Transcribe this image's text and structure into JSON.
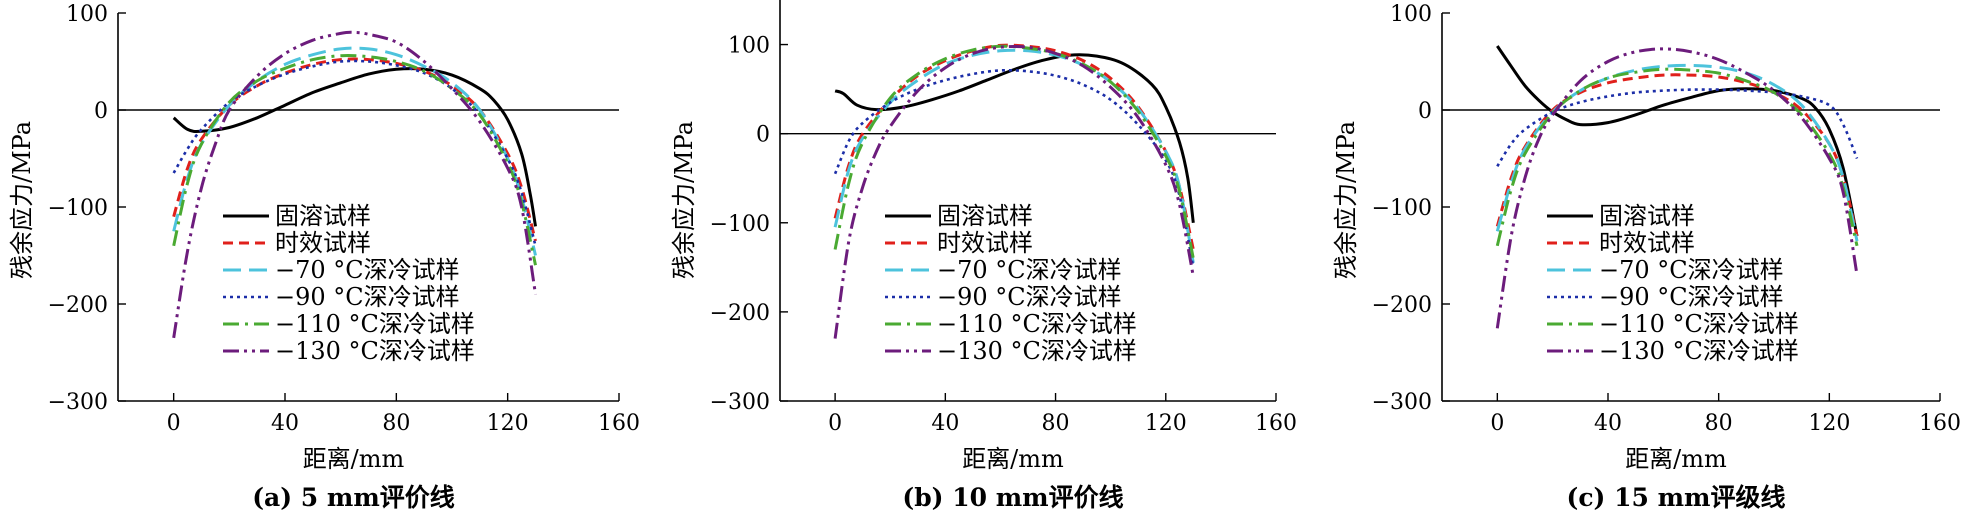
{
  "figure": {
    "ylabel": "残余应力/MPa",
    "xlabel": "距离/mm"
  },
  "chart_data": [
    {
      "type": "line",
      "caption": "(a) 5 mm评价线",
      "xlabel": "距离/mm",
      "ylabel": "残余应力/MPa",
      "xlim": [
        -20,
        160
      ],
      "ylim": [
        -300,
        100
      ],
      "xticks": [
        0,
        40,
        80,
        120,
        160
      ],
      "yticks": [
        100,
        0,
        -100,
        -200,
        -300
      ],
      "legend_position": "lower-center",
      "series": [
        {
          "name": "固溶试样",
          "color": "#000000",
          "dash": "solid",
          "x": [
            0,
            5,
            10,
            20,
            30,
            40,
            50,
            60,
            70,
            80,
            90,
            100,
            110,
            115,
            120,
            125,
            128,
            130
          ],
          "y": [
            -8,
            -20,
            -22,
            -18,
            -8,
            5,
            18,
            28,
            37,
            42,
            42,
            36,
            22,
            10,
            -10,
            -45,
            -85,
            -120
          ]
        },
        {
          "name": "时效试样",
          "color": "#e0201b",
          "dash": "dashed",
          "x": [
            0,
            5,
            10,
            20,
            30,
            40,
            50,
            60,
            70,
            80,
            90,
            100,
            110,
            120,
            125,
            130
          ],
          "y": [
            -110,
            -60,
            -30,
            5,
            25,
            38,
            47,
            52,
            52,
            48,
            40,
            25,
            0,
            -45,
            -80,
            -135
          ]
        },
        {
          "name": "−70 °C深冷试样",
          "color": "#4dc3dc",
          "dash": "longdash",
          "x": [
            0,
            5,
            10,
            20,
            30,
            40,
            50,
            60,
            70,
            80,
            90,
            100,
            110,
            120,
            125,
            130
          ],
          "y": [
            -125,
            -70,
            -35,
            5,
            30,
            47,
            57,
            63,
            63,
            57,
            45,
            28,
            0,
            -50,
            -90,
            -150
          ]
        },
        {
          "name": "−90 °C深冷试样",
          "color": "#1c2ea8",
          "dash": "dotted",
          "x": [
            0,
            5,
            10,
            20,
            30,
            40,
            50,
            60,
            70,
            80,
            90,
            100,
            110,
            120,
            125,
            130
          ],
          "y": [
            -65,
            -40,
            -20,
            8,
            25,
            37,
            45,
            50,
            50,
            46,
            38,
            22,
            -5,
            -50,
            -85,
            -140
          ]
        },
        {
          "name": "−110 °C深冷试样",
          "color": "#4aaa32",
          "dash": "dashdot",
          "x": [
            0,
            5,
            10,
            20,
            30,
            40,
            50,
            60,
            70,
            80,
            90,
            100,
            110,
            120,
            125,
            130
          ],
          "y": [
            -140,
            -75,
            -35,
            8,
            30,
            43,
            52,
            56,
            55,
            50,
            40,
            22,
            -5,
            -55,
            -95,
            -160
          ]
        },
        {
          "name": "−130 °C深冷试样",
          "color": "#6c1c7c",
          "dash": "dashdotdot",
          "x": [
            0,
            5,
            10,
            15,
            20,
            30,
            40,
            50,
            60,
            65,
            70,
            80,
            90,
            100,
            110,
            120,
            125,
            130
          ],
          "y": [
            -235,
            -145,
            -80,
            -35,
            0,
            35,
            58,
            72,
            79,
            80,
            78,
            70,
            50,
            22,
            -12,
            -60,
            -100,
            -190
          ]
        }
      ]
    },
    {
      "type": "line",
      "caption": "(b) 10 mm评价线",
      "xlabel": "距离/mm",
      "ylabel": "残余应力/MPa",
      "xlim": [
        -20,
        160
      ],
      "ylim": [
        -300,
        150
      ],
      "xticks": [
        0,
        40,
        80,
        120,
        160
      ],
      "yticks": [
        100,
        0,
        -100,
        -200,
        -300
      ],
      "legend_position": "lower-center",
      "series": [
        {
          "name": "固溶试样",
          "color": "#000000",
          "dash": "solid",
          "x": [
            0,
            3,
            8,
            15,
            25,
            35,
            45,
            55,
            65,
            75,
            85,
            95,
            105,
            115,
            120,
            125,
            128,
            130
          ],
          "y": [
            48,
            45,
            32,
            27,
            30,
            38,
            48,
            60,
            72,
            82,
            88,
            87,
            78,
            55,
            30,
            -10,
            -50,
            -100
          ]
        },
        {
          "name": "时效试样",
          "color": "#e0201b",
          "dash": "dashed",
          "x": [
            0,
            5,
            10,
            20,
            30,
            40,
            50,
            60,
            70,
            80,
            90,
            100,
            110,
            120,
            125,
            130
          ],
          "y": [
            -95,
            -35,
            0,
            38,
            65,
            82,
            93,
            99,
            98,
            93,
            82,
            62,
            30,
            -20,
            -60,
            -130
          ]
        },
        {
          "name": "−70 °C深冷试样",
          "color": "#4dc3dc",
          "dash": "longdash",
          "x": [
            0,
            5,
            10,
            20,
            30,
            40,
            50,
            60,
            70,
            80,
            90,
            100,
            110,
            120,
            125,
            130
          ],
          "y": [
            -105,
            -40,
            -5,
            35,
            60,
            78,
            88,
            93,
            93,
            88,
            77,
            58,
            28,
            -20,
            -60,
            -145
          ]
        },
        {
          "name": "−90 °C深冷试样",
          "color": "#1c2ea8",
          "dash": "dotted",
          "x": [
            0,
            5,
            10,
            20,
            30,
            40,
            50,
            60,
            70,
            80,
            90,
            100,
            110,
            120,
            125,
            130
          ],
          "y": [
            -45,
            -8,
            12,
            35,
            50,
            60,
            67,
            71,
            70,
            65,
            55,
            38,
            10,
            -30,
            -70,
            -150
          ]
        },
        {
          "name": "−110 °C深冷试样",
          "color": "#4aaa32",
          "dash": "dashdot",
          "x": [
            0,
            5,
            10,
            20,
            30,
            40,
            50,
            60,
            70,
            80,
            90,
            100,
            110,
            120,
            125,
            130
          ],
          "y": [
            -130,
            -55,
            -10,
            40,
            67,
            84,
            94,
            98,
            96,
            90,
            78,
            58,
            25,
            -25,
            -65,
            -140
          ]
        },
        {
          "name": "−130 °C深冷试样",
          "color": "#6c1c7c",
          "dash": "dashdotdot",
          "x": [
            0,
            5,
            10,
            15,
            20,
            30,
            40,
            50,
            60,
            70,
            80,
            90,
            100,
            110,
            120,
            125,
            130
          ],
          "y": [
            -230,
            -120,
            -60,
            -20,
            8,
            48,
            74,
            90,
            97,
            97,
            90,
            76,
            52,
            18,
            -35,
            -80,
            -160
          ]
        }
      ]
    },
    {
      "type": "line",
      "caption": "(c) 15 mm评级线",
      "xlabel": "距离/mm",
      "ylabel": "残余应力/MPa",
      "xlim": [
        -20,
        160
      ],
      "ylim": [
        -300,
        100
      ],
      "xticks": [
        0,
        40,
        80,
        120,
        160
      ],
      "yticks": [
        100,
        0,
        -100,
        -200,
        -300
      ],
      "legend_position": "lower-center",
      "series": [
        {
          "name": "固溶试样",
          "color": "#000000",
          "dash": "solid",
          "x": [
            0,
            5,
            10,
            15,
            20,
            25,
            30,
            40,
            50,
            60,
            70,
            80,
            90,
            100,
            110,
            115,
            120,
            125,
            130
          ],
          "y": [
            66,
            45,
            25,
            10,
            -2,
            -10,
            -15,
            -13,
            -5,
            5,
            13,
            20,
            22,
            20,
            12,
            2,
            -20,
            -60,
            -130
          ]
        },
        {
          "name": "时效试样",
          "color": "#e0201b",
          "dash": "dashed",
          "x": [
            0,
            5,
            10,
            20,
            30,
            40,
            50,
            60,
            70,
            80,
            90,
            100,
            110,
            120,
            125,
            130
          ],
          "y": [
            -120,
            -70,
            -38,
            0,
            18,
            28,
            33,
            36,
            36,
            34,
            28,
            18,
            0,
            -35,
            -70,
            -130
          ]
        },
        {
          "name": "−70 °C深冷试样",
          "color": "#4dc3dc",
          "dash": "longdash",
          "x": [
            0,
            5,
            10,
            20,
            30,
            40,
            50,
            60,
            70,
            80,
            90,
            100,
            110,
            120,
            125,
            130
          ],
          "y": [
            -125,
            -75,
            -40,
            -2,
            20,
            33,
            41,
            45,
            46,
            44,
            38,
            26,
            5,
            -35,
            -70,
            -135
          ]
        },
        {
          "name": "−90 °C深冷试样",
          "color": "#1c2ea8",
          "dash": "dotted",
          "x": [
            0,
            5,
            10,
            20,
            30,
            40,
            50,
            60,
            70,
            80,
            90,
            100,
            110,
            120,
            125,
            130
          ],
          "y": [
            -58,
            -35,
            -20,
            -2,
            8,
            14,
            18,
            20,
            21,
            21,
            20,
            18,
            14,
            5,
            -15,
            -50
          ]
        },
        {
          "name": "−110 °C深冷试样",
          "color": "#4aaa32",
          "dash": "dashdot",
          "x": [
            0,
            5,
            10,
            20,
            30,
            40,
            50,
            60,
            70,
            80,
            90,
            100,
            110,
            120,
            125,
            130
          ],
          "y": [
            -140,
            -82,
            -45,
            -3,
            20,
            33,
            39,
            42,
            41,
            38,
            30,
            18,
            -5,
            -45,
            -80,
            -140
          ]
        },
        {
          "name": "−130 °C深冷试样",
          "color": "#6c1c7c",
          "dash": "dashdotdot",
          "x": [
            0,
            5,
            10,
            15,
            20,
            30,
            40,
            50,
            60,
            70,
            80,
            90,
            100,
            110,
            120,
            125,
            130
          ],
          "y": [
            -225,
            -130,
            -70,
            -30,
            -5,
            30,
            50,
            60,
            63,
            60,
            52,
            38,
            20,
            -8,
            -50,
            -85,
            -170
          ]
        }
      ]
    }
  ]
}
